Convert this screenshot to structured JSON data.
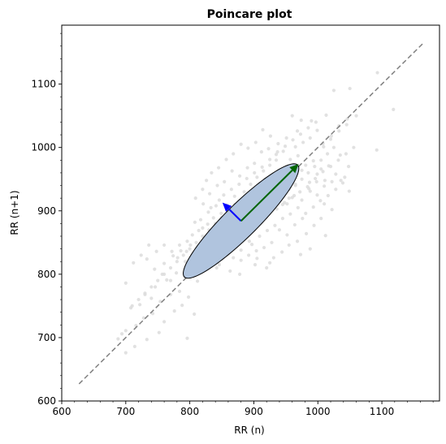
{
  "chart_data": {
    "type": "scatter",
    "title": "Poincare plot",
    "xlabel": "RR (n)",
    "ylabel": "RR (n+1)",
    "xlim": [
      600,
      1190
    ],
    "ylim": [
      600,
      1193
    ],
    "x_ticks": [
      600,
      700,
      800,
      900,
      1000,
      1100
    ],
    "y_ticks": [
      600,
      700,
      800,
      900,
      1000,
      1100
    ],
    "x_minor_step": 20,
    "y_minor_step": 20,
    "grid": false,
    "colors": {
      "points": "#dcdcdc",
      "identity_line": "#808080",
      "ellipse_fill": "#b0c4de",
      "ellipse_edge": "#000000",
      "sd1_arrow": "#0000ff",
      "sd2_arrow": "#006400"
    },
    "identity_line": {
      "from": [
        627,
        627
      ],
      "to": [
        1165,
        1165
      ]
    },
    "ellipse": {
      "center": [
        880,
        884
      ],
      "sd1": 26,
      "sd2": 125,
      "angle_deg": 45
    },
    "sd1_arrow": {
      "from": [
        880,
        884
      ],
      "to": [
        851,
        913
      ]
    },
    "sd2_arrow": {
      "from": [
        880,
        884
      ],
      "to": [
        970,
        974
      ]
    },
    "points": [
      [
        700,
        676
      ],
      [
        714,
        686
      ],
      [
        733,
        697
      ],
      [
        752,
        708
      ],
      [
        796,
        699
      ],
      [
        700,
        711
      ],
      [
        716,
        719
      ],
      [
        728,
        731
      ],
      [
        742,
        738
      ],
      [
        760,
        725
      ],
      [
        776,
        742
      ],
      [
        788,
        751
      ],
      [
        807,
        737
      ],
      [
        688,
        698
      ],
      [
        694,
        706
      ],
      [
        708,
        747
      ],
      [
        722,
        752
      ],
      [
        740,
        762
      ],
      [
        754,
        757
      ],
      [
        770,
        768
      ],
      [
        784,
        773
      ],
      [
        798,
        764
      ],
      [
        812,
        789
      ],
      [
        730,
        768
      ],
      [
        746,
        780
      ],
      [
        764,
        791
      ],
      [
        779,
        802
      ],
      [
        793,
        796
      ],
      [
        805,
        812
      ],
      [
        819,
        806
      ],
      [
        829,
        817
      ],
      [
        842,
        810
      ],
      [
        850,
        829
      ],
      [
        760,
        817
      ],
      [
        774,
        829
      ],
      [
        786,
        837
      ],
      [
        801,
        846
      ],
      [
        815,
        839
      ],
      [
        823,
        855
      ],
      [
        836,
        847
      ],
      [
        848,
        861
      ],
      [
        857,
        840
      ],
      [
        866,
        850
      ],
      [
        880,
        838
      ],
      [
        893,
        852
      ],
      [
        905,
        825
      ],
      [
        920,
        810
      ],
      [
        931,
        826
      ],
      [
        944,
        835
      ],
      [
        955,
        846
      ],
      [
        968,
        852
      ],
      [
        982,
        864
      ],
      [
        994,
        877
      ],
      [
        1005,
        888
      ],
      [
        1012,
        861
      ],
      [
        988,
        840
      ],
      [
        973,
        831
      ],
      [
        814,
        869
      ],
      [
        828,
        879
      ],
      [
        839,
        872
      ],
      [
        851,
        888
      ],
      [
        863,
        880
      ],
      [
        872,
        895
      ],
      [
        884,
        887
      ],
      [
        896,
        901
      ],
      [
        908,
        893
      ],
      [
        917,
        909
      ],
      [
        929,
        902
      ],
      [
        941,
        918
      ],
      [
        952,
        911
      ],
      [
        963,
        924
      ],
      [
        975,
        917
      ],
      [
        988,
        931
      ],
      [
        999,
        925
      ],
      [
        1010,
        939
      ],
      [
        1022,
        946
      ],
      [
        1036,
        948
      ],
      [
        1049,
        931
      ],
      [
        1042,
        953
      ],
      [
        1028,
        958
      ],
      [
        1017,
        971
      ],
      [
        1005,
        966
      ],
      [
        993,
        979
      ],
      [
        981,
        972
      ],
      [
        969,
        987
      ],
      [
        957,
        981
      ],
      [
        946,
        994
      ],
      [
        935,
        989
      ],
      [
        923,
        998
      ],
      [
        912,
        993
      ],
      [
        901,
        975
      ],
      [
        890,
        968
      ],
      [
        878,
        955
      ],
      [
        866,
        963
      ],
      [
        854,
        946
      ],
      [
        843,
        940
      ],
      [
        831,
        927
      ],
      [
        820,
        934
      ],
      [
        809,
        920
      ],
      [
        821,
        911
      ],
      [
        833,
        905
      ],
      [
        846,
        917
      ],
      [
        858,
        909
      ],
      [
        870,
        923
      ],
      [
        882,
        915
      ],
      [
        894,
        928
      ],
      [
        906,
        940
      ],
      [
        918,
        950
      ],
      [
        930,
        957
      ],
      [
        942,
        963
      ],
      [
        953,
        969
      ],
      [
        965,
        1001
      ],
      [
        977,
        1008
      ],
      [
        988,
        1015
      ],
      [
        999,
        1027
      ],
      [
        1008,
        1006
      ],
      [
        1020,
        1013
      ],
      [
        1033,
        1034
      ],
      [
        1046,
        1045
      ],
      [
        1060,
        1050
      ],
      [
        1025,
        1090
      ],
      [
        1050,
        1093
      ],
      [
        1093,
        1118
      ],
      [
        1118,
        1060
      ],
      [
        1092,
        996
      ],
      [
        1048,
        970
      ],
      [
        1035,
        988
      ],
      [
        1013,
        1051
      ],
      [
        990,
        1042
      ],
      [
        968,
        1026
      ],
      [
        951,
        1015
      ],
      [
        938,
        1006
      ],
      [
        926,
        1018
      ],
      [
        914,
        1028
      ],
      [
        903,
        1008
      ],
      [
        891,
        999
      ],
      [
        880,
        1005
      ],
      [
        868,
        990
      ],
      [
        857,
        981
      ],
      [
        845,
        968
      ],
      [
        834,
        960
      ],
      [
        826,
        948
      ],
      [
        837,
        889
      ],
      [
        849,
        896
      ],
      [
        861,
        872
      ],
      [
        873,
        866
      ],
      [
        885,
        859
      ],
      [
        897,
        847
      ],
      [
        909,
        860
      ],
      [
        921,
        869
      ],
      [
        933,
        877
      ],
      [
        945,
        888
      ],
      [
        957,
        895
      ],
      [
        969,
        905
      ],
      [
        981,
        896
      ],
      [
        993,
        906
      ],
      [
        1004,
        916
      ],
      [
        1016,
        924
      ],
      [
        1028,
        934
      ],
      [
        1039,
        944
      ],
      [
        793,
        820
      ],
      [
        806,
        829
      ],
      [
        818,
        840
      ],
      [
        830,
        851
      ],
      [
        842,
        859
      ],
      [
        855,
        866
      ],
      [
        867,
        878
      ],
      [
        879,
        884
      ],
      [
        891,
        892
      ],
      [
        903,
        903
      ],
      [
        915,
        914
      ],
      [
        927,
        926
      ],
      [
        939,
        936
      ],
      [
        951,
        947
      ],
      [
        963,
        955
      ],
      [
        975,
        964
      ],
      [
        987,
        945
      ],
      [
        999,
        958
      ],
      [
        1011,
        948
      ],
      [
        878,
        800
      ],
      [
        902,
        815
      ],
      [
        925,
        818
      ],
      [
        863,
        805
      ],
      [
        846,
        815
      ],
      [
        770,
        790
      ],
      [
        757,
        800
      ],
      [
        745,
        808
      ],
      [
        733,
        824
      ],
      [
        781,
        826
      ],
      [
        795,
        836
      ],
      [
        804,
        862
      ],
      [
        817,
        886
      ],
      [
        829,
        898
      ],
      [
        841,
        908
      ],
      [
        853,
        925
      ],
      [
        865,
        934
      ],
      [
        877,
        942
      ],
      [
        889,
        951
      ],
      [
        901,
        960
      ],
      [
        913,
        969
      ],
      [
        925,
        981
      ],
      [
        937,
        993
      ],
      [
        949,
        1002
      ],
      [
        961,
        1012
      ],
      [
        973,
        1021
      ],
      [
        985,
        1031
      ],
      [
        997,
        1040
      ],
      [
        1009,
        1001
      ],
      [
        1021,
        1018
      ],
      [
        1033,
        1026
      ],
      [
        1045,
        1036
      ],
      [
        960,
        1050
      ],
      [
        974,
        1043
      ],
      [
        986,
        935
      ],
      [
        998,
        946
      ],
      [
        1010,
        911
      ],
      [
        1022,
        902
      ],
      [
        940,
        870
      ],
      [
        952,
        862
      ],
      [
        964,
        878
      ],
      [
        976,
        888
      ],
      [
        928,
        850
      ],
      [
        916,
        842
      ],
      [
        904,
        837
      ],
      [
        892,
        830
      ],
      [
        880,
        822
      ],
      [
        868,
        826
      ],
      [
        856,
        835
      ],
      [
        844,
        852
      ],
      [
        832,
        863
      ],
      [
        820,
        873
      ],
      [
        808,
        882
      ],
      [
        796,
        852
      ],
      [
        784,
        846
      ],
      [
        772,
        836
      ],
      [
        760,
        846
      ],
      [
        748,
        836
      ],
      [
        736,
        846
      ],
      [
        724,
        830
      ],
      [
        712,
        818
      ],
      [
        700,
        786
      ],
      [
        912,
        887
      ],
      [
        924,
        895
      ],
      [
        936,
        903
      ],
      [
        948,
        913
      ],
      [
        960,
        921
      ],
      [
        972,
        930
      ],
      [
        984,
        938
      ],
      [
        996,
        951
      ],
      [
        1008,
        962
      ],
      [
        1020,
        970
      ],
      [
        1032,
        980
      ],
      [
        1044,
        990
      ],
      [
        1056,
        1000
      ],
      [
        885,
        930
      ],
      [
        895,
        942
      ],
      [
        905,
        953
      ],
      [
        915,
        963
      ],
      [
        925,
        972
      ],
      [
        935,
        980
      ],
      [
        945,
        910
      ],
      [
        955,
        920
      ],
      [
        965,
        940
      ],
      [
        975,
        950
      ],
      [
        985,
        960
      ],
      [
        995,
        970
      ],
      [
        1005,
        980
      ],
      [
        1015,
        990
      ],
      [
        1025,
        1000
      ],
      [
        870,
        910
      ],
      [
        860,
        900
      ],
      [
        850,
        890
      ],
      [
        840,
        880
      ],
      [
        830,
        870
      ],
      [
        820,
        860
      ],
      [
        810,
        850
      ],
      [
        800,
        840
      ],
      [
        790,
        830
      ],
      [
        780,
        820
      ],
      [
        770,
        810
      ],
      [
        760,
        800
      ],
      [
        750,
        790
      ],
      [
        740,
        780
      ],
      [
        730,
        770
      ],
      [
        720,
        760
      ],
      [
        710,
        750
      ],
      [
        875,
        870
      ],
      [
        885,
        878
      ],
      [
        895,
        886
      ],
      [
        905,
        894
      ],
      [
        915,
        902
      ],
      [
        925,
        910
      ],
      [
        935,
        918
      ],
      [
        945,
        926
      ],
      [
        955,
        934
      ],
      [
        965,
        942
      ]
    ]
  }
}
